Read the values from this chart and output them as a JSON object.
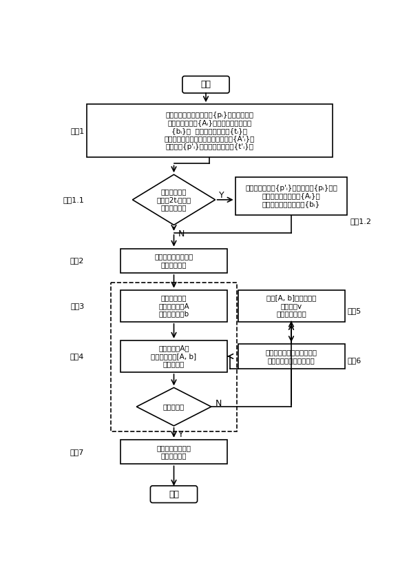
{
  "bg_color": "#ffffff",
  "start_text": "开始",
  "end_text": "结束",
  "step1_text": "用基准段测点构造测点集{pᵢ}，并建立一部\n分特征行向量集{Aᵢ}、一部分边界元素集\n{bᵢ}、  一部分状态元素集{tᵢ}；\n用被测段测点构造被测特征行向量集{A'ᵢ}、\n测测点集{p'ᵢ}、被测状态元素集{t'ᵢ}；",
  "step1_1_text": "未加入被测段\n测点且2tᵢ满足最\n大实体要求？",
  "step1_2_text": "将被被测测点集{p'ᵢ}加入测点集{pᵢ}中，\n并扩充特征行向量集{Aᵢ}，\n扩充和更新边界元素集{bᵢ}",
  "step2_text": "加入一个新的关键点\n到关键点集中",
  "step3_text": "根据关键点集\n建立分析矩阵A\n和分析列向量b",
  "step4_text": "对分析矩阵A及\n增广分析矩阵[A, b]\n进行秩分析",
  "step5_text": "根据[A, b]计算测点的\n寻优方向v\n（四参数形式）",
  "step6_text": "以追及问题求新的关键点，\n更新被测圆柱测点的状态",
  "stopopt_text": "停止寻优？",
  "step7_text": "计算零件几何误差\n并判断合格性",
  "label_step1": "步骤1",
  "label_step11": "步骤1.1",
  "label_step12": "步骤1.2",
  "label_step2": "步骤2",
  "label_step3": "步骤3",
  "label_step4": "步骤4",
  "label_step5": "步骤5",
  "label_step6": "步骤6",
  "label_step7": "步骤7",
  "Y": "Y",
  "N": "N"
}
